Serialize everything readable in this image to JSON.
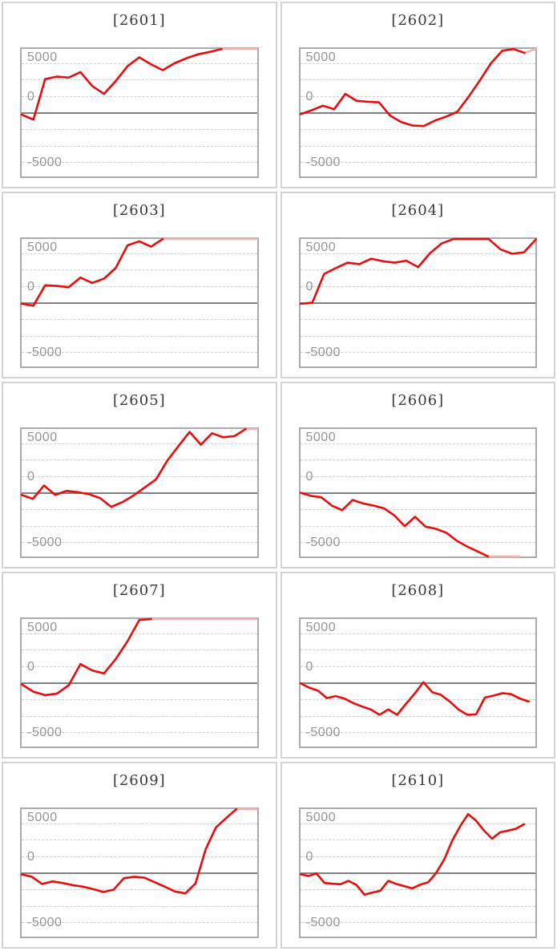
{
  "axis": {
    "labels": [
      "5000",
      "0",
      "-5000"
    ],
    "gridline_values": [
      5000,
      3333,
      1667,
      -1667,
      -3333,
      -5000
    ]
  },
  "colors": {
    "line": "#e90c0c",
    "line_clipped": "#efb5b5",
    "zero_line": "#808080",
    "gridline": "#cfcfcf",
    "plot_border": "#ababab",
    "panel_border": "#d3d3d3",
    "label": "#949494",
    "title": "#3a3a3a"
  },
  "chart_data": [
    {
      "type": "line",
      "title": "[2601]",
      "ylabel_ticks": [
        5000,
        0,
        -5000
      ],
      "ylim": [
        -6450,
        6450
      ],
      "values": [
        -200,
        -700,
        3400,
        3650,
        3550,
        4100,
        2700,
        1900,
        3200,
        4700,
        5600,
        4900,
        4300,
        5000,
        5500,
        5900,
        6150,
        6443,
        6443,
        6443,
        6443
      ],
      "clip_from": 17,
      "span": 1
    },
    {
      "type": "line",
      "title": "[2602]",
      "ylabel_ticks": [
        5000,
        0,
        -5000
      ],
      "ylim": [
        -6450,
        6450
      ],
      "values": [
        -150,
        250,
        700,
        350,
        1900,
        1200,
        1100,
        1050,
        -300,
        -950,
        -1300,
        -1350,
        -800,
        -400,
        100,
        1600,
        3250,
        5000,
        6250,
        6443,
        6050,
        6443
      ],
      "clip_from": 20,
      "span": 1
    },
    {
      "type": "line",
      "title": "[2603]",
      "ylabel_ticks": [
        5000,
        0,
        -5000
      ],
      "ylim": [
        -6450,
        6450
      ],
      "values": [
        -100,
        -300,
        1760,
        1700,
        1570,
        2540,
        2000,
        2430,
        3510,
        5800,
        6210,
        5670,
        6443,
        6443,
        6443,
        6443,
        6443,
        6443,
        6443,
        6443,
        6443
      ],
      "clip_from": 12,
      "span": 1
    },
    {
      "type": "line",
      "title": "[2604]",
      "ylabel_ticks": [
        5000,
        0,
        -5000
      ],
      "ylim": [
        -6450,
        6450
      ],
      "values": [
        -100,
        0,
        2900,
        3500,
        4050,
        3900,
        4450,
        4200,
        4050,
        4250,
        3600,
        5000,
        6000,
        6443,
        6443,
        6443,
        6443,
        5400,
        4950,
        5100,
        6400
      ],
      "clip_from": null,
      "span": 1
    },
    {
      "type": "line",
      "title": "[2605]",
      "ylabel_ticks": [
        5000,
        0,
        -5000
      ],
      "ylim": [
        -6450,
        6450
      ],
      "values": [
        -220,
        -620,
        730,
        -220,
        190,
        60,
        -140,
        -540,
        -1430,
        -950,
        -270,
        540,
        1350,
        3240,
        4720,
        6160,
        4860,
        6020,
        5610,
        5730,
        6443,
        6443
      ],
      "clip_from": 20,
      "span": 1
    },
    {
      "type": "line",
      "title": "[2606]",
      "ylabel_ticks": [
        5000,
        0,
        -5000
      ],
      "ylim": [
        -6450,
        6450
      ],
      "values": [
        0,
        -320,
        -460,
        -1300,
        -1760,
        -730,
        -1080,
        -1300,
        -1570,
        -2290,
        -3380,
        -2430,
        -3430,
        -3650,
        -4050,
        -4860,
        -5450,
        -5940,
        -6443,
        -6443,
        -6443,
        -6443
      ],
      "clip_from": 18,
      "span": 0.93
    },
    {
      "type": "line",
      "title": "[2607]",
      "ylabel_ticks": [
        5000,
        0,
        -5000
      ],
      "ylim": [
        -6450,
        6450
      ],
      "values": [
        -150,
        -900,
        -1250,
        -1100,
        -250,
        1890,
        1250,
        950,
        2400,
        4200,
        6350,
        6443,
        6443,
        6443,
        6443,
        6443,
        6443,
        6443,
        6443,
        6443,
        6443
      ],
      "clip_from": 11,
      "span": 1
    },
    {
      "type": "line",
      "title": "[2608]",
      "ylabel_ticks": [
        5000,
        0,
        -5000
      ],
      "ylim": [
        -6450,
        6450
      ],
      "values": [
        -50,
        -500,
        -800,
        -1550,
        -1350,
        -1600,
        -2050,
        -2400,
        -2700,
        -3240,
        -2700,
        -3240,
        -2150,
        -1100,
        60,
        -950,
        -1220,
        -1890,
        -2700,
        -3240,
        -3200,
        -1500,
        -1300,
        -1050,
        -1150,
        -1600,
        -1890
      ],
      "clip_from": null,
      "span": 0.97
    },
    {
      "type": "line",
      "title": "[2609]",
      "ylabel_ticks": [
        5000,
        0,
        -5000
      ],
      "ylim": [
        -6450,
        6450
      ],
      "values": [
        -150,
        -400,
        -1130,
        -870,
        -1030,
        -1250,
        -1400,
        -1650,
        -1940,
        -1700,
        -540,
        -400,
        -490,
        -950,
        -1400,
        -1890,
        -2080,
        -1080,
        2400,
        4600,
        5540,
        6443,
        6443,
        6443
      ],
      "clip_from": 21,
      "span": 1
    },
    {
      "type": "line",
      "title": "[2610]",
      "ylabel_ticks": [
        5000,
        0,
        -5000
      ],
      "ylim": [
        -6450,
        6450
      ],
      "values": [
        -140,
        -320,
        -60,
        -1030,
        -1100,
        -1160,
        -810,
        -1220,
        -2210,
        -2000,
        -1810,
        -810,
        -1130,
        -1350,
        -1570,
        -1200,
        -950,
        0,
        1350,
        3240,
        4720,
        5940,
        5270,
        4270,
        3460,
        4100,
        4270,
        4460,
        4920
      ],
      "clip_from": null,
      "span": 0.95
    }
  ]
}
